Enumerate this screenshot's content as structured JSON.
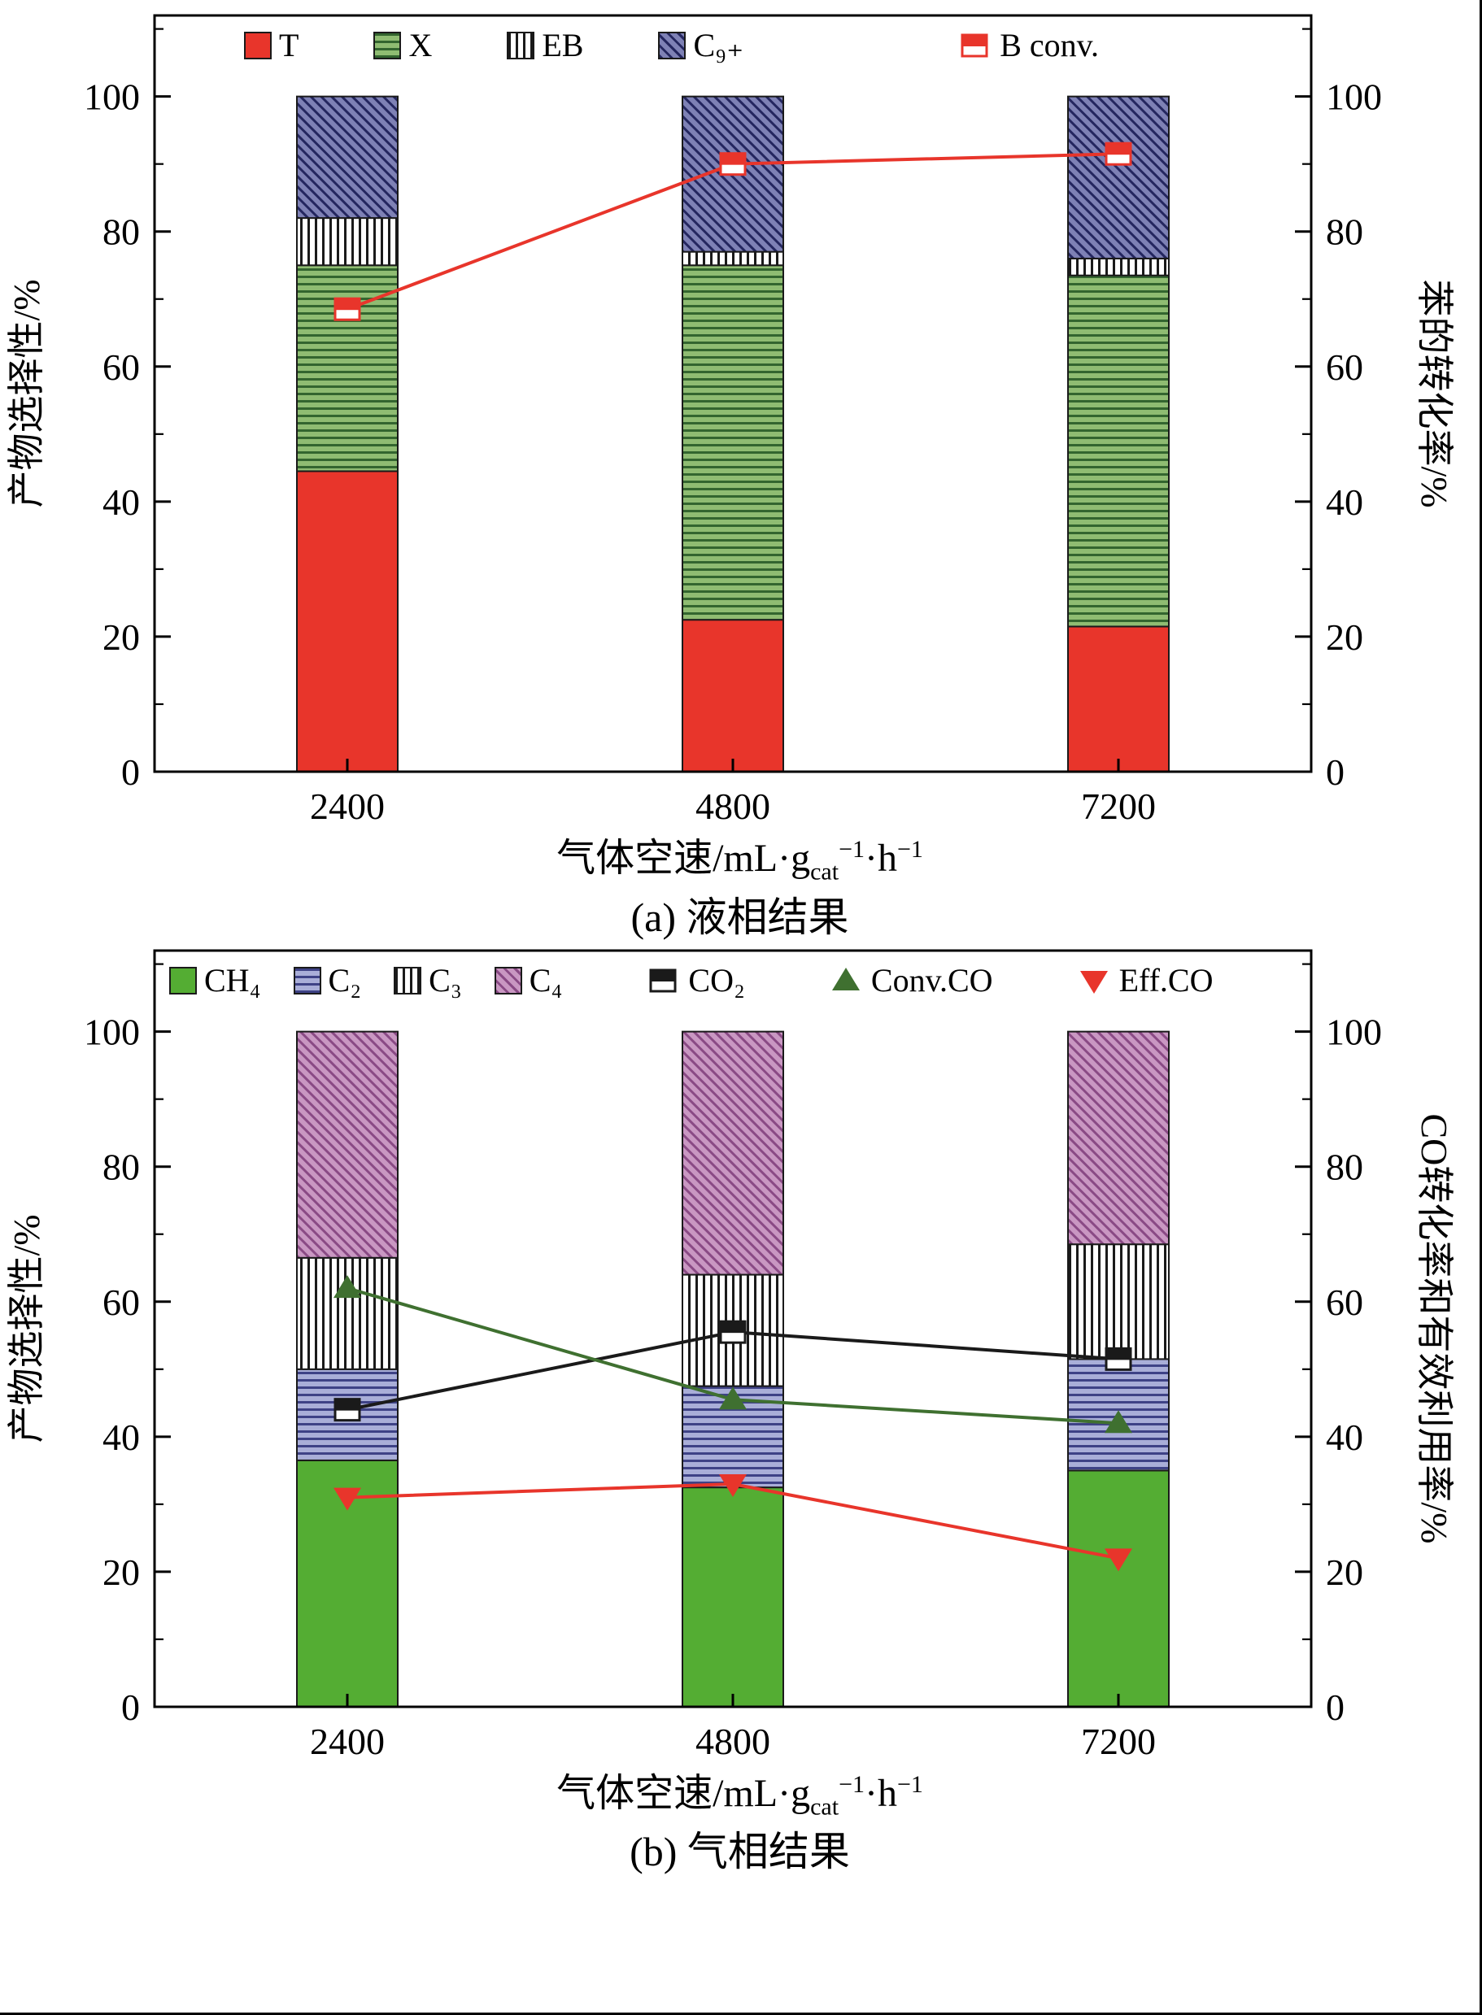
{
  "chart_data": [
    {
      "id": "a",
      "type": "bar",
      "stacked": true,
      "caption": "(a) 液相结果",
      "categories": [
        "2400",
        "4800",
        "7200"
      ],
      "xlabel_parts": {
        "pre": "气体空速/mL·g",
        "sub": "cat",
        "sup1": "−1",
        "mid": "·h",
        "sup2": "−1"
      },
      "ylabel_left": "产物选择性/%",
      "ylabel_right": "苯的转化率/%",
      "ylim": [
        0,
        100
      ],
      "ytick_major": 20,
      "ytick_minor": 10,
      "grid": false,
      "legend_position": "top-inside",
      "bar_series": [
        {
          "name": "T",
          "pattern": "solid",
          "color": "#e8352b",
          "line_color": "#e8352b",
          "values": [
            44.5,
            22.5,
            21.5
          ]
        },
        {
          "name": "X",
          "pattern": "hhatch",
          "color": "#8fbc72",
          "line_color": "#33652f",
          "values": [
            30.5,
            52.5,
            52.0
          ]
        },
        {
          "name": "EB",
          "pattern": "vhatch",
          "color": "#ffffff",
          "line_color": "#1a1a1a",
          "values": [
            7.0,
            2.0,
            2.5
          ]
        },
        {
          "name": "C₉₊",
          "pattern": "dhatch",
          "color": "#7e81b5",
          "line_color": "#24265f",
          "values": [
            18.0,
            23.0,
            24.0
          ]
        }
      ],
      "line_series": [
        {
          "name": "B conv.",
          "marker": "halfsquare",
          "color": "#e8352b",
          "values": [
            68.5,
            90.0,
            91.5
          ]
        }
      ]
    },
    {
      "id": "b",
      "type": "bar",
      "stacked": true,
      "caption": "(b) 气相结果",
      "categories": [
        "2400",
        "4800",
        "7200"
      ],
      "xlabel_parts": {
        "pre": "气体空速/mL·g",
        "sub": "cat",
        "sup1": "−1",
        "mid": "·h",
        "sup2": "−1"
      },
      "ylabel_left": "产物选择性/%",
      "ylabel_right": "CO转化率和有效利用率/%",
      "ylim": [
        0,
        100
      ],
      "ytick_major": 20,
      "ytick_minor": 10,
      "grid": false,
      "legend_position": "top-inside",
      "bar_series": [
        {
          "name": "CH₄",
          "pattern": "solid",
          "color": "#54ad33",
          "line_color": "#54ad33",
          "values": [
            36.5,
            32.5,
            35.0
          ]
        },
        {
          "name": "C₂",
          "pattern": "hhatch",
          "color": "#a9aed8",
          "line_color": "#3e4286",
          "values": [
            13.5,
            15.0,
            16.5
          ]
        },
        {
          "name": "C₃",
          "pattern": "vhatch",
          "color": "#ffffff",
          "line_color": "#1a1a1a",
          "values": [
            16.5,
            16.5,
            17.0
          ]
        },
        {
          "name": "C₄",
          "pattern": "dhatch",
          "color": "#c997c2",
          "line_color": "#8a4a85",
          "values": [
            33.5,
            36.0,
            31.5
          ]
        }
      ],
      "line_series": [
        {
          "name": "CO₂",
          "marker": "halfsquare",
          "color": "#1a1a1a",
          "values": [
            44.0,
            55.5,
            51.5
          ]
        },
        {
          "name": "Conv.CO",
          "marker": "triup",
          "color": "#3f7030",
          "values": [
            62.0,
            45.5,
            42.0
          ]
        },
        {
          "name": "Eff.CO",
          "marker": "tridown",
          "color": "#e8352b",
          "values": [
            31.0,
            33.0,
            22.0
          ]
        }
      ]
    }
  ]
}
